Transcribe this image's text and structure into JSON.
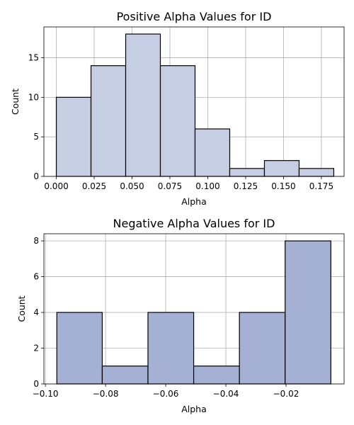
{
  "chart_data": [
    {
      "type": "bar",
      "title": "Positive Alpha Values for ID",
      "xlabel": "Alpha",
      "ylabel": "Count",
      "xlim": [
        -0.0082,
        0.19
      ],
      "ylim": [
        0,
        18.9
      ],
      "xticks": [
        0.0,
        0.025,
        0.05,
        0.075,
        0.1,
        0.125,
        0.15,
        0.175
      ],
      "xtick_labels": [
        "0.000",
        "0.025",
        "0.050",
        "0.075",
        "0.100",
        "0.125",
        "0.150",
        "0.175"
      ],
      "yticks": [
        0,
        5,
        10,
        15
      ],
      "ytick_labels": [
        "0",
        "5",
        "10",
        "15"
      ],
      "bin_edges": [
        0.0,
        0.0229,
        0.0458,
        0.0687,
        0.0916,
        0.1145,
        0.1374,
        0.1603,
        0.1832
      ],
      "counts": [
        10,
        14,
        18,
        14,
        6,
        1,
        2,
        1
      ],
      "bar_color": "#c5cee2",
      "grid": true
    },
    {
      "type": "bar",
      "title": "Negative Alpha Values for ID",
      "xlabel": "Alpha",
      "ylabel": "Count",
      "xlim": [
        -0.1005,
        -0.0007
      ],
      "ylim": [
        0,
        8.4
      ],
      "xticks": [
        -0.1,
        -0.08,
        -0.06,
        -0.04,
        -0.02
      ],
      "xtick_labels": [
        "−0.10",
        "−0.08",
        "−0.06",
        "−0.04",
        "−0.02"
      ],
      "yticks": [
        0,
        2,
        4,
        6,
        8
      ],
      "ytick_labels": [
        "0",
        "2",
        "4",
        "6",
        "8"
      ],
      "bin_edges": [
        -0.0962,
        -0.0811,
        -0.0659,
        -0.0507,
        -0.0355,
        -0.0203,
        -0.0051
      ],
      "counts": [
        4,
        1,
        4,
        1,
        4,
        8
      ],
      "bar_color": "#a4b0d4",
      "grid": true
    }
  ]
}
